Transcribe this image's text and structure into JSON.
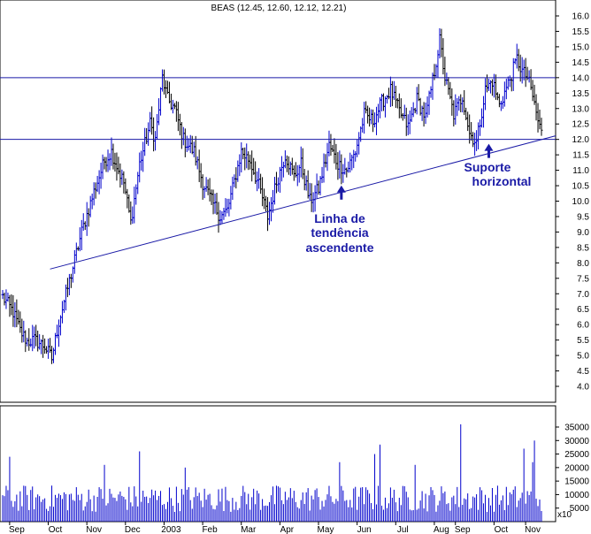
{
  "chart_data": {
    "type": "bar",
    "title": "BEAS (12.45, 12.60, 12.12, 12.21)",
    "x_month_labels": [
      "Sep",
      "Oct",
      "Nov",
      "Dec",
      "2003",
      "Feb",
      "Mar",
      "Apr",
      "May",
      "Jun",
      "Jul",
      "Aug",
      "Sep",
      "Oct",
      "Nov"
    ],
    "price_axis": {
      "ylim": [
        3.6,
        16.5
      ],
      "ticks": [
        "4.0",
        "4.5",
        "5.0",
        "5.5",
        "6.0",
        "6.5",
        "7.0",
        "7.5",
        "8.0",
        "8.5",
        "9.0",
        "9.5",
        "10.0",
        "10.5",
        "11.0",
        "11.5",
        "12.0",
        "12.5",
        "13.0",
        "13.5",
        "14.0",
        "14.5",
        "15.0",
        "15.5",
        "16.0"
      ]
    },
    "volume_axis": {
      "ylim": [
        0,
        38000
      ],
      "ticks": [
        "5000",
        "10000",
        "15000",
        "20000",
        "25000",
        "30000",
        "35000"
      ],
      "unit_label": "x10"
    },
    "horizontal_lines": [
      14.0,
      12.0
    ],
    "trendline": {
      "from": {
        "index": 27,
        "price": 7.8
      },
      "to": {
        "index": 305,
        "price": 12.0
      }
    },
    "annotations": [
      {
        "text_lines": [
          "Linha de",
          "tendência",
          "ascendente"
        ],
        "arrow_index": 193,
        "arrow_price": 10.45
      },
      {
        "text_lines": [
          "Suporte",
          "horizontal"
        ],
        "arrow_index": 277,
        "arrow_price": 11.8
      }
    ],
    "series": [
      {
        "type": "ohlc",
        "start_index": 0,
        "count": 308,
        "close_anchors": [
          [
            0,
            6.9
          ],
          [
            6,
            6.4
          ],
          [
            10,
            5.8
          ],
          [
            14,
            5.45
          ],
          [
            18,
            5.5
          ],
          [
            24,
            5.3
          ],
          [
            28,
            4.9
          ],
          [
            32,
            6.1
          ],
          [
            38,
            7.4
          ],
          [
            45,
            9.0
          ],
          [
            52,
            10.3
          ],
          [
            58,
            11.3
          ],
          [
            62,
            11.6
          ],
          [
            66,
            11.0
          ],
          [
            69,
            10.6
          ],
          [
            73,
            9.3
          ],
          [
            78,
            11.2
          ],
          [
            84,
            12.5
          ],
          [
            87,
            12.0
          ],
          [
            91,
            14.0
          ],
          [
            94,
            13.3
          ],
          [
            98,
            13.0
          ],
          [
            103,
            12.0
          ],
          [
            109,
            11.6
          ],
          [
            114,
            10.6
          ],
          [
            119,
            10.0
          ],
          [
            124,
            9.5
          ],
          [
            128,
            9.7
          ],
          [
            131,
            10.4
          ],
          [
            136,
            11.6
          ],
          [
            141,
            11.3
          ],
          [
            146,
            10.5
          ],
          [
            151,
            9.5
          ],
          [
            156,
            10.6
          ],
          [
            161,
            11.5
          ],
          [
            166,
            10.8
          ],
          [
            170,
            11.2
          ],
          [
            175,
            10.0
          ],
          [
            180,
            10.4
          ],
          [
            186,
            11.8
          ],
          [
            191,
            11.2
          ],
          [
            196,
            11.0
          ],
          [
            201,
            11.6
          ],
          [
            206,
            12.8
          ],
          [
            211,
            12.6
          ],
          [
            216,
            13.2
          ],
          [
            221,
            13.6
          ],
          [
            226,
            12.9
          ],
          [
            231,
            12.4
          ],
          [
            236,
            13.3
          ],
          [
            241,
            12.7
          ],
          [
            246,
            14.2
          ],
          [
            249,
            15.2
          ],
          [
            252,
            14.0
          ],
          [
            257,
            12.8
          ],
          [
            262,
            13.4
          ],
          [
            266,
            12.2
          ],
          [
            270,
            11.9
          ],
          [
            275,
            13.6
          ],
          [
            279,
            13.9
          ],
          [
            283,
            13.1
          ],
          [
            288,
            13.8
          ],
          [
            293,
            14.6
          ],
          [
            296,
            14.2
          ],
          [
            299,
            14.0
          ],
          [
            302,
            13.4
          ],
          [
            305,
            12.6
          ],
          [
            307,
            12.2
          ]
        ]
      },
      {
        "type": "volume_bars",
        "count": 308,
        "base": 8000,
        "spikes": [
          [
            4,
            24000
          ],
          [
            58,
            21000
          ],
          [
            78,
            26000
          ],
          [
            104,
            20000
          ],
          [
            192,
            22000
          ],
          [
            212,
            25000
          ],
          [
            215,
            28500
          ],
          [
            235,
            21000
          ],
          [
            261,
            36000
          ],
          [
            297,
            27000
          ],
          [
            302,
            22000
          ],
          [
            303,
            30000
          ]
        ]
      }
    ]
  }
}
